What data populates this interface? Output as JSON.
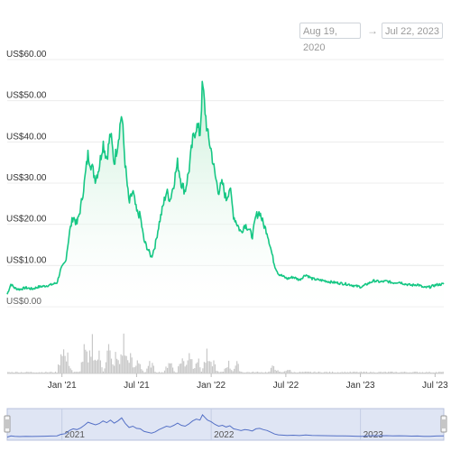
{
  "date_range": {
    "from": "Aug 19, 2020",
    "arrow": "→",
    "to": "Jul 22, 2023"
  },
  "chart_data": {
    "type": "area",
    "y_ticks": [
      "US$60.00",
      "US$50.00",
      "US$40.00",
      "US$30.00",
      "US$20.00",
      "US$10.00",
      "US$0.00"
    ],
    "y_tick_values": [
      60,
      50,
      40,
      30,
      20,
      10,
      0
    ],
    "x_ticks": [
      {
        "label": "Jan '21",
        "t": 4.4
      },
      {
        "label": "Jul '21",
        "t": 10.4
      },
      {
        "label": "Jan '22",
        "t": 16.4
      },
      {
        "label": "Jul '22",
        "t": 22.4
      },
      {
        "label": "Jan '23",
        "t": 28.4
      },
      {
        "label": "Jul '23",
        "t": 34.4
      }
    ],
    "x_unit": "months since Aug 19, 2020",
    "ylim": [
      0,
      60
    ],
    "xlim": [
      0,
      35.1
    ],
    "series": [
      {
        "points": [
          [
            0,
            3
          ],
          [
            0.3,
            5.5
          ],
          [
            0.6,
            4.5
          ],
          [
            1.0,
            4.2
          ],
          [
            1.5,
            4.6
          ],
          [
            2.0,
            4.3
          ],
          [
            2.5,
            4.8
          ],
          [
            3.0,
            5.0
          ],
          [
            3.5,
            5.3
          ],
          [
            4.0,
            5.8
          ],
          [
            4.3,
            9.0
          ],
          [
            4.7,
            11.0
          ],
          [
            5.0,
            18.0
          ],
          [
            5.3,
            22.0
          ],
          [
            5.6,
            20.0
          ],
          [
            5.9,
            24.0
          ],
          [
            6.2,
            30.0
          ],
          [
            6.5,
            37.0
          ],
          [
            6.8,
            34.0
          ],
          [
            7.1,
            31.0
          ],
          [
            7.4,
            34.0
          ],
          [
            7.7,
            40.0
          ],
          [
            8.0,
            36.0
          ],
          [
            8.3,
            42.0
          ],
          [
            8.6,
            35.0
          ],
          [
            8.9,
            40.0
          ],
          [
            9.2,
            47.0
          ],
          [
            9.5,
            34.0
          ],
          [
            9.8,
            25.0
          ],
          [
            10.1,
            28.0
          ],
          [
            10.4,
            23.0
          ],
          [
            10.7,
            22.0
          ],
          [
            11.0,
            16.0
          ],
          [
            11.3,
            14.0
          ],
          [
            11.6,
            12.0
          ],
          [
            11.9,
            15.0
          ],
          [
            12.2,
            20.0
          ],
          [
            12.5,
            24.0
          ],
          [
            12.8,
            28.0
          ],
          [
            13.1,
            26.0
          ],
          [
            13.4,
            30.0
          ],
          [
            13.7,
            35.0
          ],
          [
            14.0,
            30.0
          ],
          [
            14.3,
            28.0
          ],
          [
            14.6,
            33.0
          ],
          [
            14.9,
            40.0
          ],
          [
            15.2,
            44.0
          ],
          [
            15.5,
            42.0
          ],
          [
            15.7,
            54.0
          ],
          [
            15.9,
            48.0
          ],
          [
            16.1,
            42.0
          ],
          [
            16.4,
            38.0
          ],
          [
            16.7,
            32.0
          ],
          [
            17.0,
            28.0
          ],
          [
            17.3,
            30.0
          ],
          [
            17.6,
            26.0
          ],
          [
            17.9,
            29.0
          ],
          [
            18.2,
            22.0
          ],
          [
            18.5,
            20.0
          ],
          [
            18.8,
            18.0
          ],
          [
            19.1,
            20.0
          ],
          [
            19.4,
            19.0
          ],
          [
            19.7,
            17.0
          ],
          [
            20.0,
            22.0
          ],
          [
            20.3,
            23.0
          ],
          [
            20.6,
            20.0
          ],
          [
            20.9,
            18.0
          ],
          [
            21.2,
            14.0
          ],
          [
            21.5,
            10.0
          ],
          [
            21.8,
            8.0
          ],
          [
            22.1,
            7.5
          ],
          [
            22.5,
            6.8
          ],
          [
            23.0,
            7.2
          ],
          [
            23.5,
            6.5
          ],
          [
            24.0,
            7.8
          ],
          [
            24.5,
            6.8
          ],
          [
            25.0,
            6.5
          ],
          [
            25.5,
            6.3
          ],
          [
            26.0,
            6.0
          ],
          [
            26.5,
            5.8
          ],
          [
            27.0,
            5.6
          ],
          [
            27.5,
            5.4
          ],
          [
            28.0,
            5.0
          ],
          [
            28.5,
            4.8
          ],
          [
            29.0,
            5.6
          ],
          [
            29.5,
            6.3
          ],
          [
            30.0,
            6.0
          ],
          [
            30.5,
            6.2
          ],
          [
            31.0,
            5.8
          ],
          [
            31.5,
            6.0
          ],
          [
            32.0,
            5.5
          ],
          [
            32.5,
            5.2
          ],
          [
            33.0,
            5.4
          ],
          [
            33.5,
            4.6
          ],
          [
            34.0,
            4.8
          ],
          [
            34.5,
            5.3
          ],
          [
            35.1,
            5.5
          ]
        ]
      }
    ],
    "volume_peaks": [
      [
        4.4,
        0.9
      ],
      [
        4.8,
        0.5
      ],
      [
        6.2,
        0.75
      ],
      [
        6.8,
        1.0
      ],
      [
        7.3,
        0.6
      ],
      [
        8.1,
        0.8
      ],
      [
        8.7,
        0.55
      ],
      [
        9.3,
        1.0
      ],
      [
        9.8,
        0.6
      ],
      [
        10.5,
        0.45
      ],
      [
        11.5,
        0.35
      ],
      [
        13.0,
        0.45
      ],
      [
        14.0,
        0.5
      ],
      [
        14.6,
        0.75
      ],
      [
        15.2,
        0.5
      ],
      [
        16.0,
        0.55
      ],
      [
        16.5,
        0.4
      ],
      [
        17.7,
        0.35
      ],
      [
        18.4,
        0.3
      ],
      [
        21.4,
        0.25
      ],
      [
        22.5,
        0.15
      ]
    ],
    "navigator_labels": [
      {
        "label": "2021",
        "t": 4.4
      },
      {
        "label": "2022",
        "t": 16.4
      },
      {
        "label": "2023",
        "t": 28.4
      }
    ],
    "colors": {
      "line": "#16c784",
      "area_top": "#c9efd8",
      "grid": "#ececec",
      "volume": "#c8c8c8",
      "navigator_bg": "#dfe5f4",
      "navigator_line": "#5470c6",
      "navigator_border": "#b7c1dc"
    }
  }
}
